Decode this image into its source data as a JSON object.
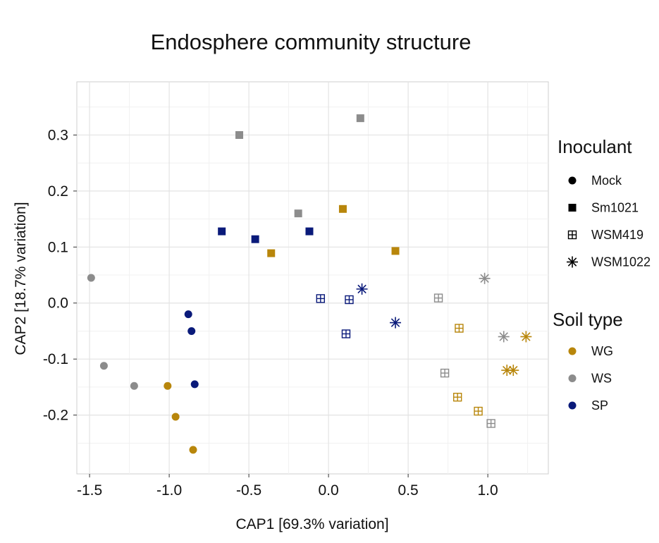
{
  "chart_data": {
    "type": "scatter",
    "title": "Endosphere community structure",
    "xlabel": "CAP1 [69.3% variation]",
    "ylabel": "CAP2 [18.7% variation]",
    "xlim": [
      -1.58,
      1.38
    ],
    "ylim": [
      -0.305,
      0.395
    ],
    "x_ticks": [
      -1.5,
      -1.0,
      -0.5,
      0.0,
      0.5,
      1.0
    ],
    "x_tick_labels": [
      "-1.5",
      "-1.0",
      "-0.5",
      "0.0",
      "0.5",
      "1.0"
    ],
    "y_ticks": [
      0.3,
      0.2,
      0.1,
      0.0,
      -0.1,
      -0.2
    ],
    "y_tick_labels": [
      "0.3",
      "0.2",
      "0.1",
      "0.0",
      "-0.1",
      "-0.2"
    ],
    "grid": true,
    "legend_inoculant": {
      "title": "Inoculant",
      "items": [
        {
          "label": "Mock",
          "shape": "circle"
        },
        {
          "label": "Sm1021",
          "shape": "square"
        },
        {
          "label": "WSM419",
          "shape": "boxplus"
        },
        {
          "label": "WSM1022",
          "shape": "asterisk"
        }
      ]
    },
    "legend_soil": {
      "title": "Soil type",
      "items": [
        {
          "label": "WG",
          "color": "#B8860B"
        },
        {
          "label": "WS",
          "color": "#8C8C8C"
        },
        {
          "label": "SP",
          "color": "#0A1A7A"
        }
      ]
    },
    "series": [
      {
        "inoculant": "Mock",
        "soil": "WS",
        "points": [
          [
            -1.49,
            0.045
          ],
          [
            -1.41,
            -0.112
          ],
          [
            -1.22,
            -0.148
          ]
        ]
      },
      {
        "inoculant": "Mock",
        "soil": "WG",
        "points": [
          [
            -1.01,
            -0.148
          ],
          [
            -0.96,
            -0.203
          ],
          [
            -0.85,
            -0.262
          ]
        ]
      },
      {
        "inoculant": "Mock",
        "soil": "SP",
        "points": [
          [
            -0.88,
            -0.02
          ],
          [
            -0.86,
            -0.05
          ],
          [
            -0.84,
            -0.145
          ]
        ]
      },
      {
        "inoculant": "Sm1021",
        "soil": "WS",
        "points": [
          [
            -0.56,
            0.3
          ],
          [
            -0.19,
            0.16
          ],
          [
            0.2,
            0.33
          ]
        ]
      },
      {
        "inoculant": "Sm1021",
        "soil": "SP",
        "points": [
          [
            -0.67,
            0.128
          ],
          [
            -0.46,
            0.114
          ],
          [
            -0.12,
            0.128
          ]
        ]
      },
      {
        "inoculant": "Sm1021",
        "soil": "WG",
        "points": [
          [
            -0.36,
            0.089
          ],
          [
            0.09,
            0.168
          ],
          [
            0.42,
            0.093
          ]
        ]
      },
      {
        "inoculant": "WSM419",
        "soil": "SP",
        "points": [
          [
            -0.05,
            0.008
          ],
          [
            0.13,
            0.006
          ],
          [
            0.11,
            -0.055
          ]
        ]
      },
      {
        "inoculant": "WSM419",
        "soil": "WS",
        "points": [
          [
            0.69,
            0.009
          ],
          [
            0.73,
            -0.125
          ],
          [
            1.02,
            -0.215
          ]
        ]
      },
      {
        "inoculant": "WSM419",
        "soil": "WG",
        "points": [
          [
            0.82,
            -0.045
          ],
          [
            0.81,
            -0.168
          ],
          [
            0.94,
            -0.193
          ]
        ]
      },
      {
        "inoculant": "WSM1022",
        "soil": "SP",
        "points": [
          [
            0.21,
            0.025
          ],
          [
            0.42,
            -0.035
          ]
        ]
      },
      {
        "inoculant": "WSM1022",
        "soil": "WS",
        "points": [
          [
            0.98,
            0.044
          ],
          [
            1.1,
            -0.06
          ]
        ]
      },
      {
        "inoculant": "WSM1022",
        "soil": "WG",
        "points": [
          [
            1.24,
            -0.06
          ],
          [
            1.12,
            -0.12
          ],
          [
            1.16,
            -0.12
          ]
        ]
      }
    ]
  }
}
